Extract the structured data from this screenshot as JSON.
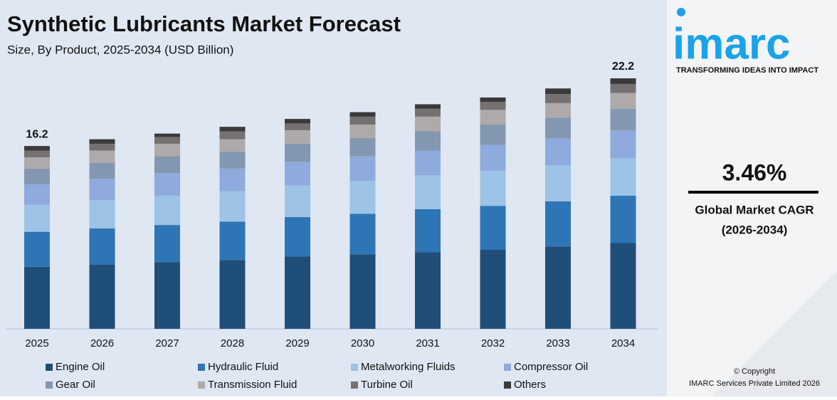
{
  "chart_data": {
    "type": "stacked_bar",
    "title": "Synthetic Lubricants Market Forecast",
    "subtitle": "Size, By Product, 2025-2034 (USD Billion)",
    "categories": [
      "2025",
      "2026",
      "2027",
      "2028",
      "2029",
      "2030",
      "2031",
      "2032",
      "2033",
      "2034"
    ],
    "series": [
      {
        "name": "Engine Oil",
        "color": "#1f4e79",
        "values": [
          5.5,
          5.7,
          5.9,
          6.1,
          6.4,
          6.6,
          6.8,
          7.0,
          7.3,
          7.6
        ]
      },
      {
        "name": "Hydraulic Fluid",
        "color": "#2e75b6",
        "values": [
          3.1,
          3.2,
          3.3,
          3.4,
          3.5,
          3.6,
          3.8,
          3.9,
          4.0,
          4.2
        ]
      },
      {
        "name": "Metalworking Fluids",
        "color": "#9dc3e6",
        "values": [
          2.4,
          2.5,
          2.6,
          2.7,
          2.8,
          2.9,
          3.0,
          3.1,
          3.2,
          3.3
        ]
      },
      {
        "name": "Compressor Oil",
        "color": "#8faadc",
        "values": [
          1.8,
          1.9,
          2.0,
          2.0,
          2.1,
          2.2,
          2.2,
          2.3,
          2.4,
          2.5
        ]
      },
      {
        "name": "Gear Oil",
        "color": "#8497b0",
        "values": [
          1.4,
          1.4,
          1.5,
          1.5,
          1.6,
          1.6,
          1.7,
          1.8,
          1.8,
          1.9
        ]
      },
      {
        "name": "Transmission Fluid",
        "color": "#aeaaaa",
        "values": [
          1.0,
          1.1,
          1.1,
          1.1,
          1.2,
          1.2,
          1.3,
          1.3,
          1.3,
          1.4
        ]
      },
      {
        "name": "Turbine Oil",
        "color": "#767171",
        "values": [
          0.6,
          0.6,
          0.6,
          0.7,
          0.6,
          0.7,
          0.7,
          0.7,
          0.8,
          0.8
        ]
      },
      {
        "name": "Others",
        "color": "#3a3a3a",
        "values": [
          0.4,
          0.4,
          0.3,
          0.4,
          0.4,
          0.4,
          0.4,
          0.4,
          0.5,
          0.5
        ]
      }
    ],
    "totals": [
      16.2,
      null,
      null,
      null,
      null,
      null,
      null,
      null,
      null,
      22.2
    ]
  },
  "sidebar": {
    "logo": "imarc",
    "tagline": "TRANSFORMING IDEAS INTO IMPACT",
    "cagr": "3.46%",
    "cagr_label": "Global Market CAGR",
    "cagr_period": "(2026-2034)",
    "copyright": "© Copyright",
    "company": "IMARC Services Private Limited 2026"
  }
}
